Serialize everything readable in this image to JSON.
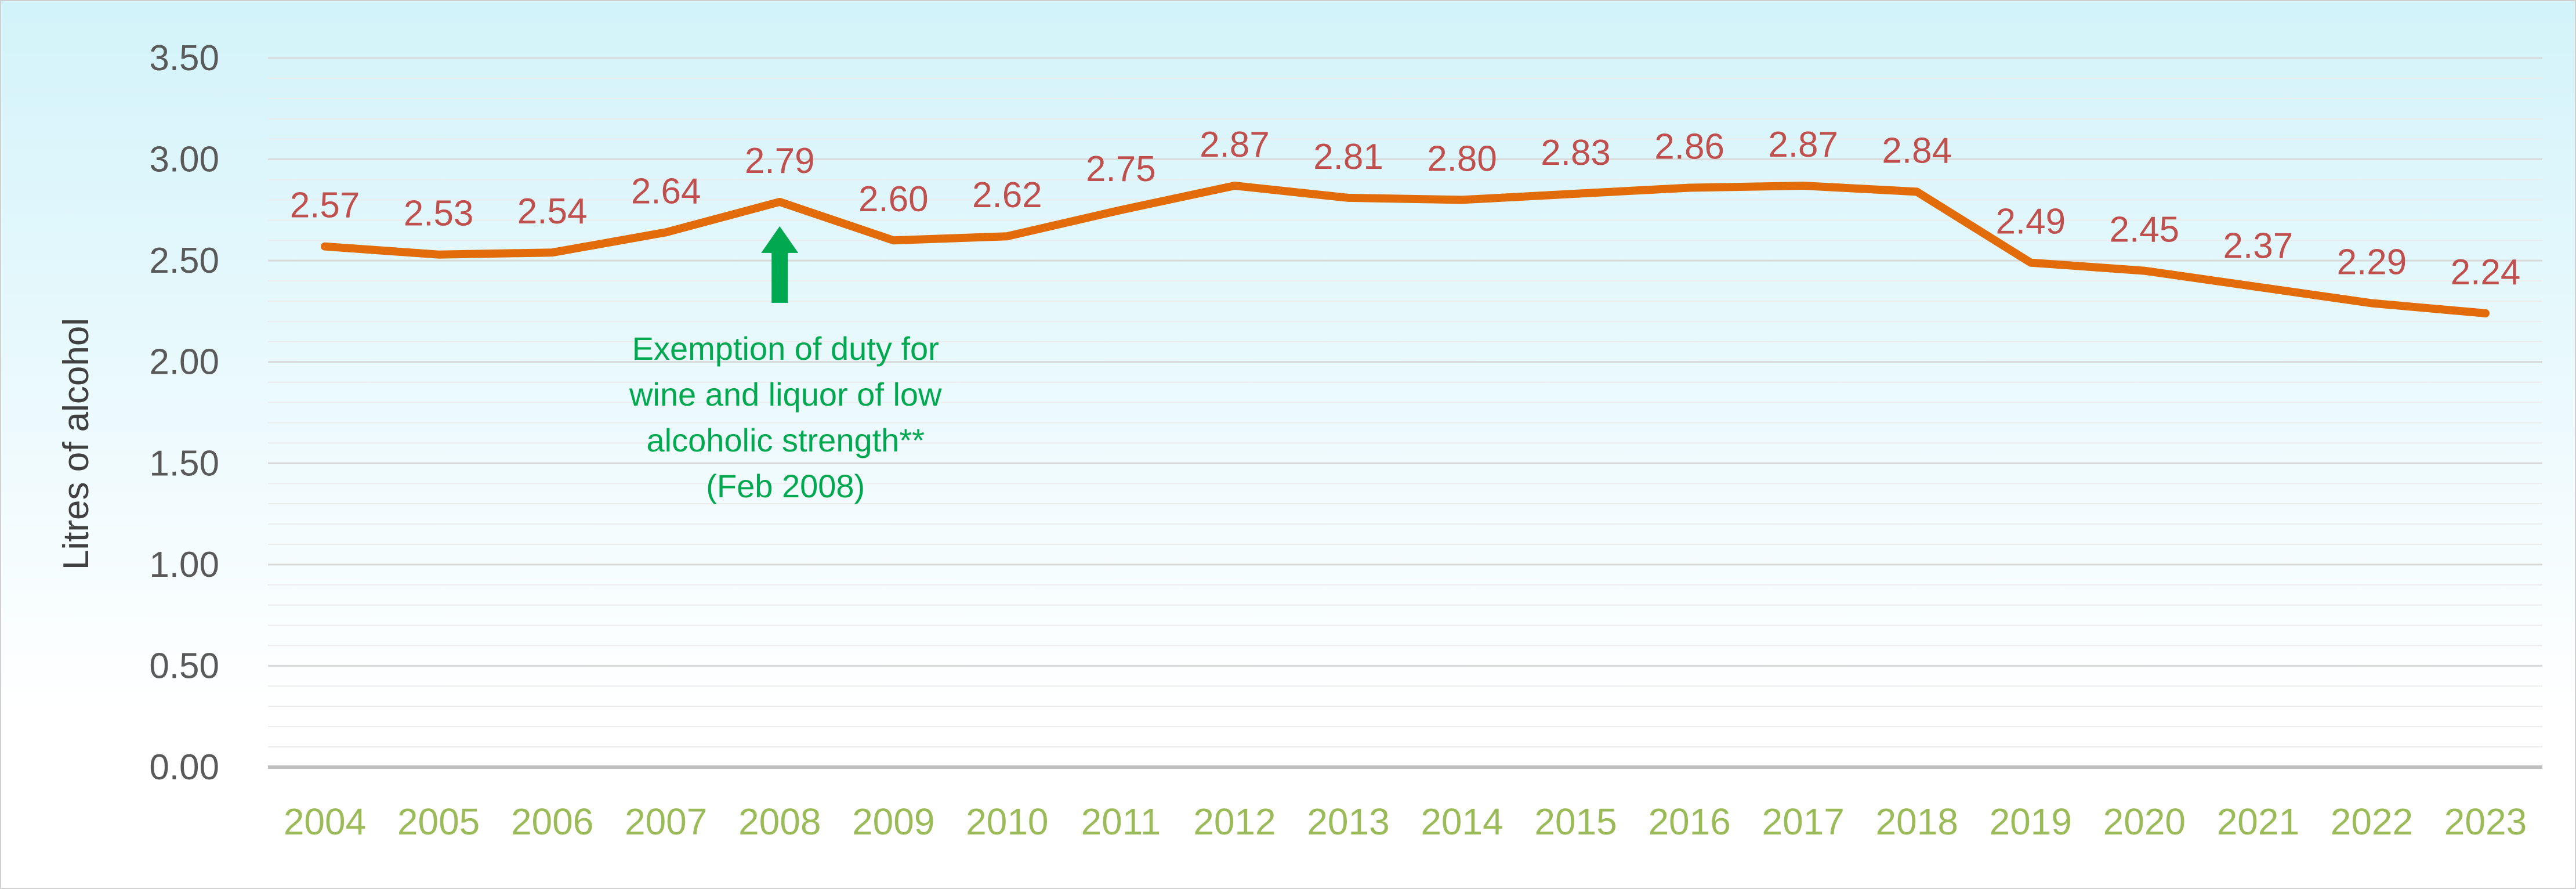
{
  "chart_data": {
    "type": "line",
    "ylabel": "Litres of alcohol",
    "ylim": [
      0,
      3.5
    ],
    "yticks": [
      "0.00",
      "0.50",
      "1.00",
      "1.50",
      "2.00",
      "2.50",
      "3.00",
      "3.50"
    ],
    "categories": [
      "2004",
      "2005",
      "2006",
      "2007",
      "2008",
      "2009",
      "2010",
      "2011",
      "2012",
      "2013",
      "2014",
      "2015",
      "2016",
      "2017",
      "2018",
      "2019",
      "2020",
      "2021",
      "2022",
      "2023"
    ],
    "series": [
      {
        "values": [
          2.57,
          2.53,
          2.54,
          2.64,
          2.79,
          2.6,
          2.62,
          2.75,
          2.87,
          2.81,
          2.8,
          2.83,
          2.86,
          2.87,
          2.84,
          2.49,
          2.45,
          2.37,
          2.29,
          2.24
        ],
        "labels": [
          "2.57",
          "2.53",
          "2.54",
          "2.64",
          "2.79",
          "2.60",
          "2.62",
          "2.75",
          "2.87",
          "2.81",
          "2.80",
          "2.83",
          "2.86",
          "2.87",
          "2.84",
          "2.49",
          "2.45",
          "2.37",
          "2.29",
          "2.24"
        ],
        "color": "#E36C0A"
      }
    ],
    "annotation": {
      "category": "2008",
      "lines": [
        "Exemption of duty for",
        "wine and liquor of low",
        "alcoholic strength**",
        "(Feb 2008)"
      ],
      "color": "#00A84F"
    },
    "grid": true,
    "colors": {
      "background_top": "#D2F3FA",
      "background_bottom": "#FFFFFF",
      "data_label": "#C0504D",
      "x_tick": "#9BBB59",
      "y_tick": "#595959",
      "gridline": "#D9D9D9"
    }
  }
}
